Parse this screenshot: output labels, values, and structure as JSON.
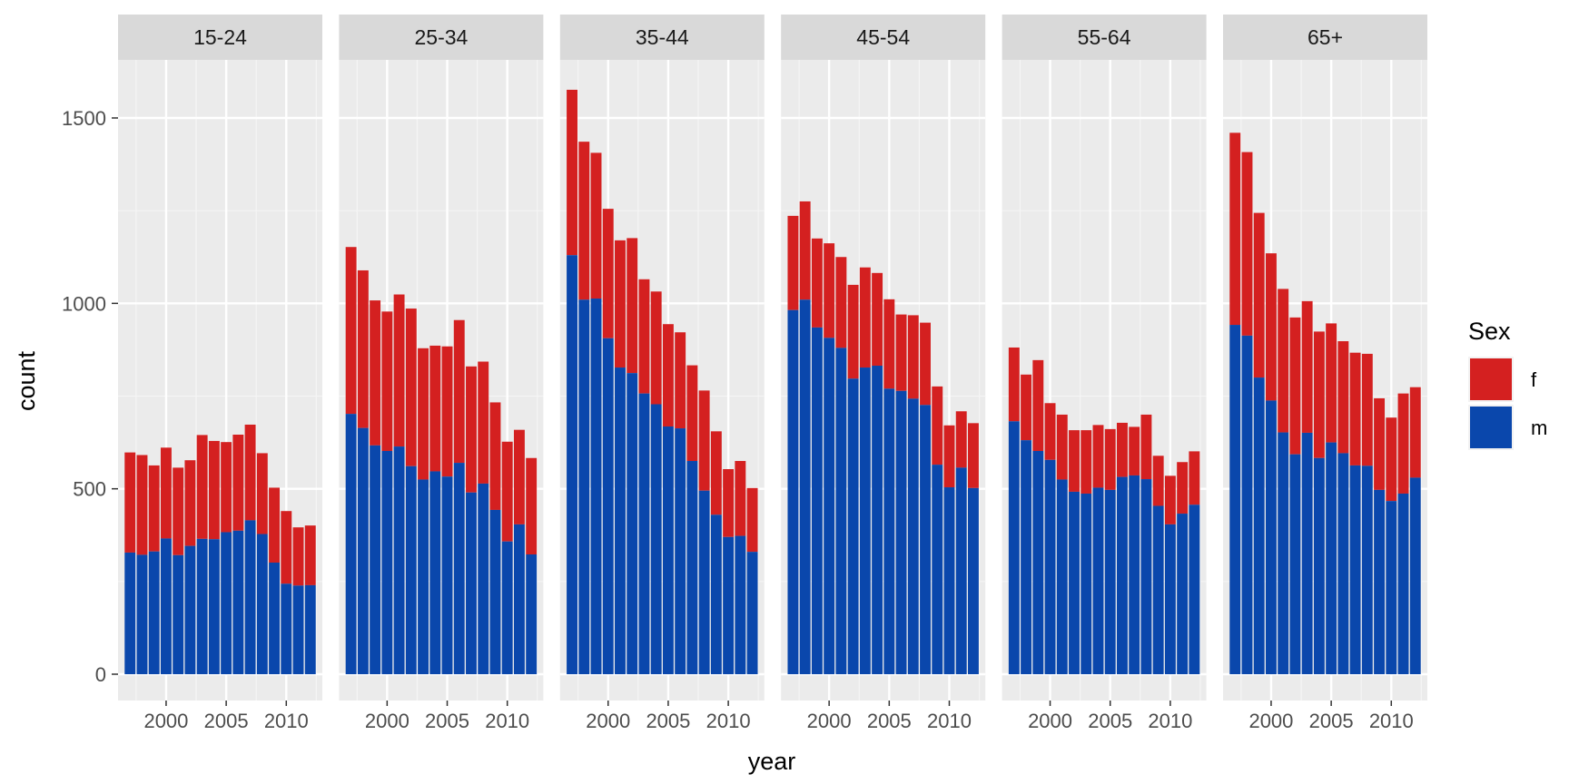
{
  "chart_data": {
    "type": "bar",
    "stacked": true,
    "facet_by": "age group",
    "xlabel": "year",
    "ylabel": "count",
    "ylim": [
      0,
      1650
    ],
    "y_ticks": [
      0,
      500,
      1000,
      1500
    ],
    "x_ticks": [
      2000,
      2005,
      2010
    ],
    "xlim": [
      1996,
      2013
    ],
    "grid": true,
    "legend": {
      "title": "Sex",
      "placement": "right",
      "entries": [
        {
          "key": "f",
          "label": "f",
          "color": "#D42020"
        },
        {
          "key": "m",
          "label": "m",
          "color": "#0A47AC"
        }
      ]
    },
    "years": [
      1997,
      1998,
      1999,
      2000,
      2001,
      2002,
      2003,
      2004,
      2005,
      2006,
      2007,
      2008,
      2009,
      2010,
      2011,
      2012
    ],
    "panels": [
      {
        "label": "15-24",
        "m": [
          328,
          322,
          331,
          366,
          321,
          346,
          365,
          364,
          383,
          387,
          415,
          378,
          301,
          244,
          239,
          240
        ],
        "total": [
          598,
          591,
          563,
          611,
          557,
          577,
          645,
          629,
          626,
          646,
          673,
          596,
          503,
          440,
          396,
          401
        ]
      },
      {
        "label": "25-34",
        "m": [
          702,
          664,
          617,
          602,
          614,
          561,
          525,
          547,
          533,
          570,
          490,
          514,
          443,
          358,
          404,
          323
        ],
        "total": [
          1152,
          1089,
          1008,
          978,
          1024,
          986,
          879,
          886,
          884,
          955,
          830,
          843,
          733,
          627,
          659,
          583
        ]
      },
      {
        "label": "35-44",
        "m": [
          1130,
          1010,
          1013,
          906,
          827,
          812,
          757,
          728,
          668,
          663,
          575,
          495,
          430,
          370,
          373,
          330
        ],
        "total": [
          1576,
          1436,
          1406,
          1255,
          1170,
          1176,
          1065,
          1032,
          944,
          922,
          833,
          765,
          655,
          553,
          575,
          502
        ]
      },
      {
        "label": "45-54",
        "m": [
          982,
          1010,
          935,
          907,
          880,
          797,
          827,
          832,
          770,
          764,
          743,
          726,
          565,
          504,
          557,
          502
        ],
        "total": [
          1236,
          1275,
          1175,
          1162,
          1125,
          1050,
          1097,
          1082,
          1011,
          970,
          968,
          948,
          776,
          671,
          709,
          677
        ]
      },
      {
        "label": "55-64",
        "m": [
          682,
          631,
          602,
          578,
          525,
          492,
          487,
          503,
          497,
          532,
          536,
          526,
          454,
          404,
          433,
          457
        ],
        "total": [
          881,
          808,
          847,
          731,
          700,
          658,
          658,
          672,
          661,
          678,
          667,
          700,
          589,
          535,
          572,
          601
        ]
      },
      {
        "label": "65+",
        "m": [
          942,
          913,
          800,
          738,
          652,
          593,
          651,
          583,
          625,
          596,
          563,
          562,
          497,
          467,
          487,
          530
        ],
        "total": [
          1460,
          1408,
          1244,
          1135,
          1039,
          962,
          1006,
          924,
          946,
          898,
          867,
          864,
          744,
          692,
          757,
          774
        ]
      }
    ]
  }
}
